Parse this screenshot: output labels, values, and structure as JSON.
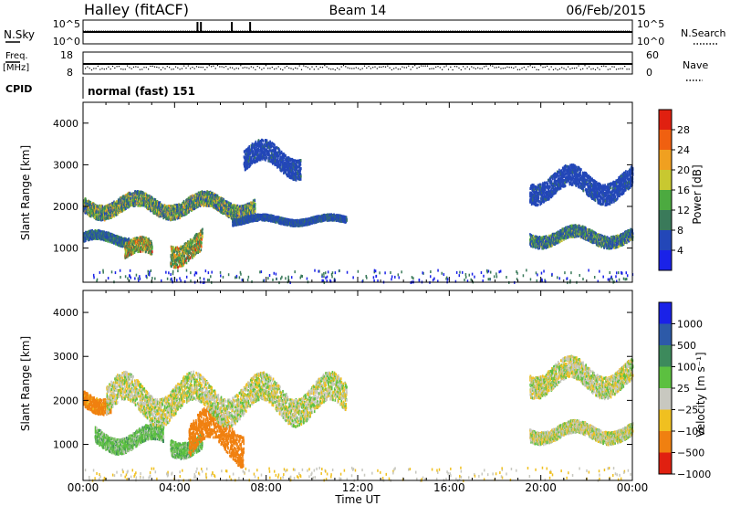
{
  "header": {
    "station": "Halley (fitACF)",
    "beam": "Beam 14",
    "date": "06/Feb/2015"
  },
  "strips": {
    "nsky_label": "N.Sky",
    "nsky_top": "10^5",
    "nsky_bottom": "10^0",
    "nsearch_label": "N.Search",
    "nsearch_top": "10^5",
    "nsearch_bottom": "10^0",
    "freq_label": "Freq.",
    "freq_unit": "[MHz]",
    "freq_top": "18",
    "freq_bottom": "8",
    "nave_label": "Nave",
    "nave_top": "60",
    "nave_bottom": "0",
    "cpid_label": "CPID",
    "cpid_value": "normal (fast) 151"
  },
  "x_axis": {
    "label": "Time UT",
    "ticks": [
      "00:00",
      "04:00",
      "08:00",
      "12:00",
      "16:00",
      "20:00",
      "00:00"
    ]
  },
  "power_panel": {
    "ylabel": "Slant Range [km]",
    "yticks": [
      "1000",
      "2000",
      "3000",
      "4000"
    ],
    "colorbar_label": "Power [dB]",
    "colorbar_ticks": [
      "4",
      "8",
      "12",
      "16",
      "20",
      "24",
      "28"
    ],
    "colors": [
      "#1a22e8",
      "#2347b8",
      "#3a7a5a",
      "#4caa40",
      "#c8c830",
      "#f0a020",
      "#f06010",
      "#e02010"
    ]
  },
  "velocity_panel": {
    "ylabel": "Slant Range [km]",
    "yticks": [
      "1000",
      "2000",
      "3000",
      "4000"
    ],
    "colorbar_label": "Velocity [m s⁻¹]",
    "colorbar_ticks": [
      "1000",
      "500",
      "100",
      "25",
      "−25",
      "−100",
      "−500",
      "−1000"
    ],
    "colors": [
      "#1a22e8",
      "#2d5aa8",
      "#3d8a5c",
      "#5cc040",
      "#c8c8c0",
      "#f0c020",
      "#f08010",
      "#e02010"
    ]
  },
  "chart_data": [
    {
      "type": "heatmap",
      "title": "Power",
      "xlabel": "Time UT",
      "ylabel": "Slant Range [km]",
      "xlim": [
        0,
        24
      ],
      "ylim": [
        180,
        4500
      ],
      "colorbar": {
        "label": "Power [dB]",
        "range": [
          0,
          30
        ]
      },
      "features": [
        {
          "t_start": 0.0,
          "t_end": 7.5,
          "range_km": [
            1800,
            2300
          ],
          "power_db": [
            6,
            22
          ]
        },
        {
          "t_start": 0.0,
          "t_end": 2.0,
          "range_km": [
            1100,
            1400
          ],
          "power_db": [
            4,
            14
          ]
        },
        {
          "t_start": 1.8,
          "t_end": 3.0,
          "range_km": [
            700,
            1200
          ],
          "power_db": [
            8,
            28
          ]
        },
        {
          "t_start": 3.8,
          "t_end": 5.2,
          "range_km": [
            700,
            1400
          ],
          "power_db": [
            8,
            28
          ]
        },
        {
          "t_start": 6.5,
          "t_end": 11.5,
          "range_km": [
            1600,
            1800
          ],
          "power_db": [
            4,
            10
          ]
        },
        {
          "t_start": 7.0,
          "t_end": 9.5,
          "range_km": [
            2800,
            3500
          ],
          "power_db": [
            4,
            8
          ]
        },
        {
          "t_start": 19.5,
          "t_end": 24.0,
          "range_km": [
            1100,
            1500
          ],
          "power_db": [
            4,
            18
          ]
        },
        {
          "t_start": 19.5,
          "t_end": 24.0,
          "range_km": [
            2200,
            2900
          ],
          "power_db": [
            4,
            8
          ]
        }
      ]
    },
    {
      "type": "heatmap",
      "title": "Velocity",
      "xlabel": "Time UT",
      "ylabel": "Slant Range [km]",
      "xlim": [
        0,
        24
      ],
      "ylim": [
        180,
        4500
      ],
      "colorbar": {
        "label": "Velocity [m s⁻¹]",
        "range": [
          -1000,
          1000
        ]
      },
      "features": [
        {
          "t_start": 0.0,
          "t_end": 1.2,
          "range_km": [
            1800,
            2300
          ],
          "velocity_ms": -150
        },
        {
          "t_start": 0.5,
          "t_end": 3.5,
          "range_km": [
            900,
            1400
          ],
          "velocity_ms": 60
        },
        {
          "t_start": 3.8,
          "t_end": 5.2,
          "range_km": [
            800,
            1300
          ],
          "velocity_ms": 60
        },
        {
          "t_start": 4.6,
          "t_end": 7.0,
          "range_km": [
            700,
            1700
          ],
          "velocity_ms": -200
        },
        {
          "t_start": 1.0,
          "t_end": 11.5,
          "range_km": [
            1600,
            2500
          ],
          "velocity_ms": 0
        },
        {
          "t_start": 19.5,
          "t_end": 24.0,
          "range_km": [
            1100,
            1500
          ],
          "velocity_ms": 0
        },
        {
          "t_start": 19.5,
          "t_end": 24.0,
          "range_km": [
            2200,
            2900
          ],
          "velocity_ms": 0
        }
      ]
    }
  ]
}
